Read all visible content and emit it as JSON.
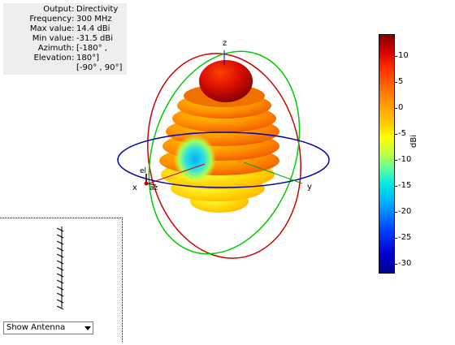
{
  "info_panel": {
    "rows": [
      {
        "label": "Output",
        "value": "Directivity"
      },
      {
        "label": "Frequency",
        "value": "300 MHz"
      },
      {
        "label": "Max value",
        "value": "14.4 dBi"
      },
      {
        "label": "Min value",
        "value": "-31.5 dBi"
      },
      {
        "label": "Azimuth",
        "value": "[-180° ,"
      },
      {
        "label": "Elevation",
        "value": "180°]"
      },
      {
        "label": "",
        "value": "[-90° , 90°]"
      }
    ]
  },
  "pattern": {
    "axis_z": "z",
    "axis_x": "x",
    "axis_y": "y",
    "label_el": "el",
    "label_az": "az",
    "colors": {
      "elevation_circle_red": "#cc0000",
      "elevation_circle_green": "#00cc00",
      "azimuth_circle_blue": "#0000aa"
    }
  },
  "colorbar": {
    "unit": "dBi",
    "ticks": [
      "10",
      "5",
      "0",
      "-5",
      "-10",
      "-15",
      "-20",
      "-25",
      "-30"
    ],
    "range": [
      -31.5,
      14.4
    ]
  },
  "antenna_view": {
    "select_value": "Show Antenna"
  }
}
